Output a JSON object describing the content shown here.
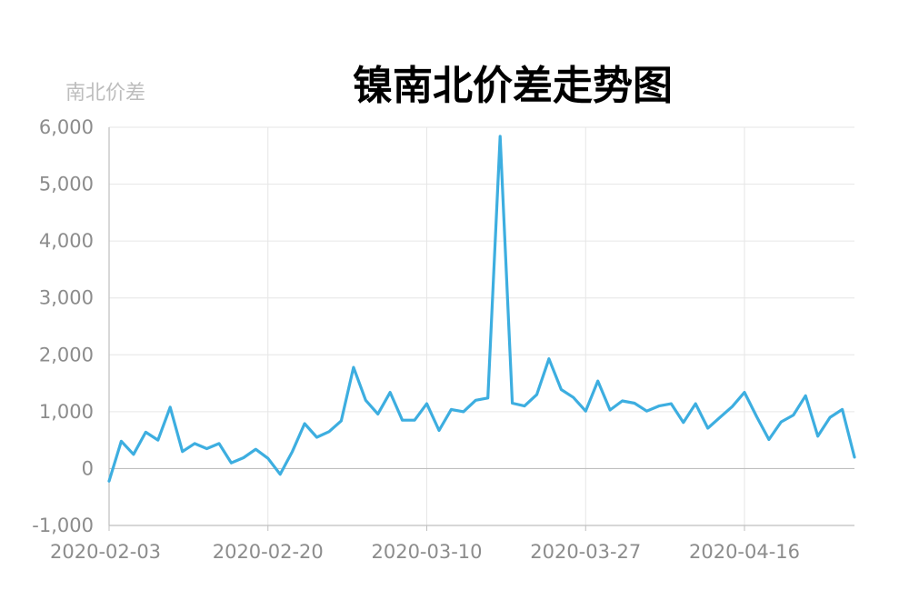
{
  "chart_data": {
    "type": "line",
    "title": "镍南北价差走势图",
    "ylabel": "南北价差",
    "xlabel": "",
    "ylim": [
      -1000,
      6000
    ],
    "yticks": [
      -1000,
      0,
      1000,
      2000,
      3000,
      4000,
      5000,
      6000
    ],
    "ytick_labels": [
      "-1,000",
      "0",
      "1,000",
      "2,000",
      "3,000",
      "4,000",
      "5,000",
      "6,000"
    ],
    "xtick_labels": [
      "2020-02-03",
      "2020-02-20",
      "2020-03-10",
      "2020-03-27",
      "2020-04-16"
    ],
    "xtick_index": [
      0,
      13,
      26,
      39,
      52
    ],
    "grid": true,
    "line_color": "#3daee0",
    "series": [
      {
        "values": [
          -220,
          480,
          250,
          640,
          500,
          1080,
          300,
          440,
          350,
          440,
          100,
          190,
          340,
          180,
          -100,
          300,
          790,
          550,
          650,
          840,
          1780,
          1200,
          960,
          1340,
          850,
          850,
          1140,
          670,
          1040,
          1000,
          1200,
          1240,
          5840,
          1150,
          1100,
          1300,
          1930,
          1390,
          1250,
          1010,
          1540,
          1030,
          1190,
          1150,
          1010,
          1100,
          1140,
          810,
          1140,
          710,
          900,
          1090,
          1340,
          910,
          510,
          820,
          940,
          1280,
          570,
          900,
          1040,
          200
        ]
      }
    ]
  }
}
